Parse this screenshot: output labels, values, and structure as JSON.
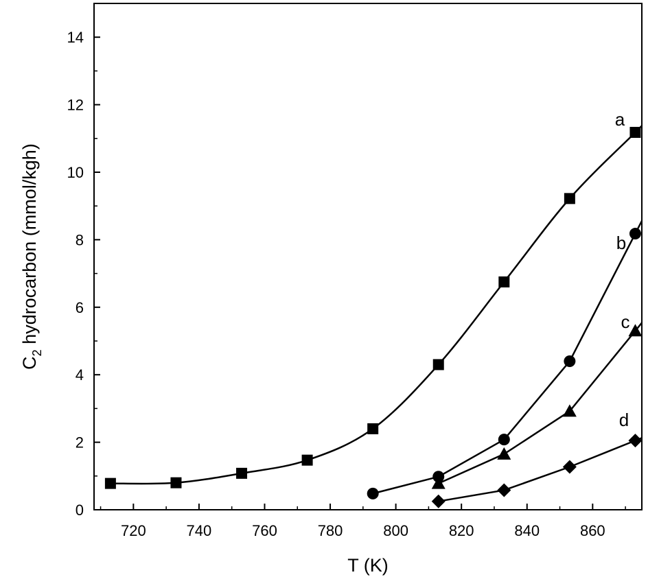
{
  "chart_data": {
    "type": "line",
    "title": "",
    "xlabel": "T (K)",
    "ylabel_main": "C",
    "ylabel_sub": "2",
    "ylabel_rest": " hydrocarbon (mmol/kgh)",
    "xlim": [
      708,
      875
    ],
    "ylim": [
      0,
      15
    ],
    "xticks": [
      720,
      740,
      760,
      780,
      800,
      820,
      840,
      860
    ],
    "yticks": [
      0,
      2,
      4,
      6,
      8,
      10,
      12,
      14
    ],
    "grid": false,
    "series": [
      {
        "name": "a",
        "marker": "square",
        "smooth": true,
        "x": [
          713,
          733,
          753,
          773,
          793,
          813,
          833,
          853,
          873
        ],
        "y": [
          0.78,
          0.8,
          1.08,
          1.47,
          2.4,
          4.3,
          6.75,
          9.22,
          11.18
        ]
      },
      {
        "name": "b",
        "marker": "circle",
        "smooth": false,
        "x": [
          793,
          813,
          833,
          853,
          873
        ],
        "y": [
          0.48,
          0.98,
          2.08,
          4.4,
          8.18
        ]
      },
      {
        "name": "c",
        "marker": "triangle",
        "smooth": false,
        "x": [
          813,
          833,
          853,
          873
        ],
        "y": [
          0.78,
          1.65,
          2.92,
          5.3
        ]
      },
      {
        "name": "d",
        "marker": "diamond",
        "smooth": false,
        "x": [
          813,
          833,
          853,
          873
        ],
        "y": [
          0.25,
          0.58,
          1.27,
          2.05
        ]
      }
    ]
  }
}
